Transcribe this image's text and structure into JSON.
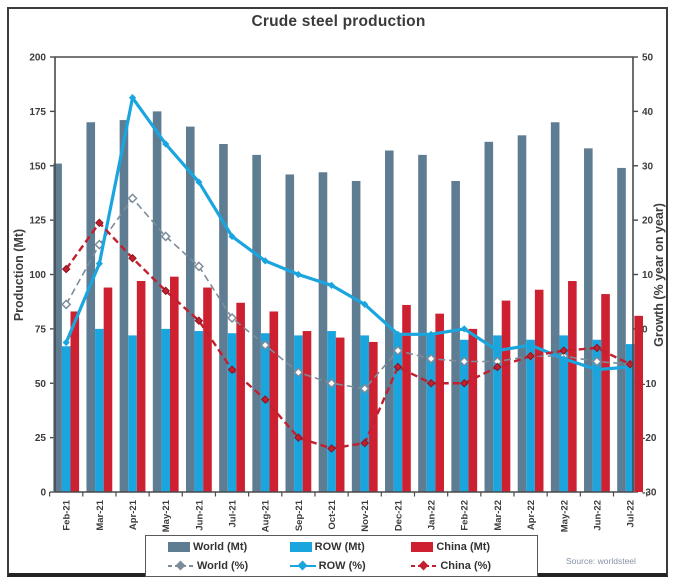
{
  "chart_data": {
    "type": "combo-bar-line",
    "title": "Crude steel production",
    "source": "Source: worldsteel",
    "categories": [
      "Feb-21",
      "Mar-21",
      "Apr-21",
      "May-21",
      "Jun-21",
      "Jul-21",
      "Aug-21",
      "Sep-21",
      "Oct-21",
      "Nov-21",
      "Dec-21",
      "Jan-22",
      "Feb-22",
      "Mar-22",
      "Apr-22",
      "May-22",
      "Jun-22",
      "Jul-22"
    ],
    "bar_series": [
      {
        "name": "World (Mt)",
        "color": "#5E7D93",
        "values": [
          151,
          170,
          171,
          175,
          168,
          160,
          155,
          146,
          147,
          143,
          157,
          155,
          143,
          161,
          164,
          170,
          158,
          149
        ]
      },
      {
        "name": "ROW (Mt)",
        "color": "#1AA5DE",
        "values": [
          67,
          75,
          72,
          75,
          74,
          73,
          73,
          72,
          74,
          72,
          73,
          73,
          70,
          72,
          70,
          72,
          70,
          68
        ]
      },
      {
        "name": "China (Mt)",
        "color": "#CD2030",
        "values": [
          83,
          94,
          97,
          99,
          94,
          87,
          83,
          74,
          71,
          69,
          86,
          82,
          75,
          88,
          93,
          97,
          91,
          81
        ]
      }
    ],
    "line_series": [
      {
        "name": "World (%)",
        "color": "#7D8C99",
        "style": "dashed",
        "marker": "open-diamond",
        "values": [
          4.5,
          15.5,
          24,
          17,
          11.5,
          2,
          -3,
          -8,
          -10,
          -11,
          -4,
          -5.5,
          -6,
          -6,
          -5,
          -5,
          -6,
          -6.5
        ]
      },
      {
        "name": "ROW (%)",
        "color": "#1AA5DE",
        "style": "solid",
        "marker": "diamond",
        "values": [
          -2.5,
          12,
          42.5,
          34,
          27,
          17,
          12.5,
          10,
          8,
          4.5,
          -1,
          -1,
          0,
          -4,
          -3,
          -5.5,
          -7.5,
          -7
        ]
      },
      {
        "name": "China (%)",
        "color": "#C2202E",
        "style": "dashed",
        "marker": "diamond",
        "values": [
          11,
          19.5,
          13,
          7,
          1.5,
          -7.5,
          -13,
          -20,
          -22,
          -21,
          -7,
          -10,
          -10,
          -7,
          -5,
          -4,
          -3.5,
          -6.5
        ]
      }
    ],
    "left_axis": {
      "label": "Production (Mt)",
      "min": 0,
      "max": 200,
      "step": 25
    },
    "right_axis": {
      "label": "Growth (% year on year)",
      "min": -30,
      "max": 50,
      "step": 10
    },
    "legend_position": "bottom",
    "grid": false
  }
}
